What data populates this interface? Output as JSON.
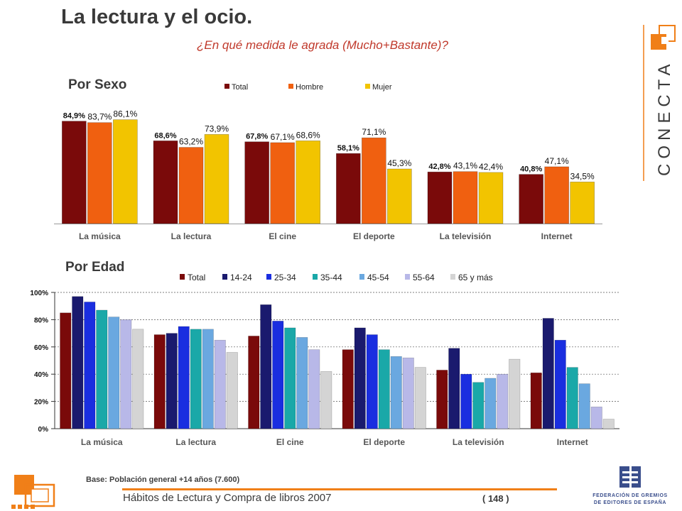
{
  "header": {
    "title": "La lectura y el ocio.",
    "subtitle": "¿En qué medida le agrada (Mucho+Bastante)?"
  },
  "brand": {
    "logo_text": "CONECTA",
    "federation_name_line1": "FEDERACIÓN DE GREMIOS",
    "federation_name_line2": "DE EDITORES DE ESPAÑA"
  },
  "colors": {
    "total": "#7a0a0a",
    "hombre": "#f06010",
    "mujer": "#f2c400",
    "age_14_24": "#1a1a6e",
    "age_25_34": "#1a2ee0",
    "age_35_44": "#1aa8a8",
    "age_45_54": "#6aa8e0",
    "age_55_64": "#b8b8e8",
    "age_65_plus": "#d4d4d4",
    "accent": "#f07f18",
    "subtitle": "#c0392b"
  },
  "sections": {
    "sexo_title": "Por Sexo",
    "edad_title": "Por Edad"
  },
  "chart_data": [
    {
      "type": "bar",
      "title": "Por Sexo",
      "categories": [
        "La música",
        "La lectura",
        "El cine",
        "El deporte",
        "La televisión",
        "Internet"
      ],
      "series": [
        {
          "name": "Total",
          "values": [
            84.9,
            68.6,
            67.8,
            58.1,
            42.8,
            40.8
          ],
          "labels": [
            "84,9%",
            "68,6%",
            "67,8%",
            "58,1%",
            "42,8%",
            "40,8%"
          ]
        },
        {
          "name": "Hombre",
          "values": [
            83.7,
            63.2,
            67.1,
            71.1,
            43.1,
            47.1
          ],
          "labels": [
            "83,7%",
            "63,2%",
            "67,1%",
            "71,1%",
            "43,1%",
            "47,1%"
          ]
        },
        {
          "name": "Mujer",
          "values": [
            86.1,
            73.9,
            68.6,
            45.3,
            42.4,
            34.5
          ],
          "labels": [
            "86,1%",
            "73,9%",
            "68,6%",
            "45,3%",
            "42,4%",
            "34,5%"
          ]
        }
      ],
      "ylim": [
        0,
        100
      ],
      "legend": "top",
      "grid": false
    },
    {
      "type": "bar",
      "title": "Por Edad",
      "categories": [
        "La música",
        "La lectura",
        "El cine",
        "El deporte",
        "La televisión",
        "Internet"
      ],
      "series": [
        {
          "name": "Total",
          "values": [
            85,
            69,
            68,
            58,
            43,
            41
          ]
        },
        {
          "name": "14-24",
          "values": [
            97,
            70,
            91,
            74,
            59,
            81
          ]
        },
        {
          "name": "25-34",
          "values": [
            93,
            75,
            79,
            69,
            40,
            65
          ]
        },
        {
          "name": "35-44",
          "values": [
            87,
            73,
            74,
            58,
            34,
            45
          ]
        },
        {
          "name": "45-54",
          "values": [
            82,
            73,
            67,
            53,
            37,
            33
          ]
        },
        {
          "name": "55-64",
          "values": [
            80,
            65,
            58,
            52,
            40,
            16
          ]
        },
        {
          "name": "65 y más",
          "values": [
            73,
            56,
            42,
            45,
            51,
            7
          ]
        }
      ],
      "yticks": [
        "0%",
        "20%",
        "40%",
        "60%",
        "80%",
        "100%"
      ],
      "ylim": [
        0,
        100
      ],
      "legend": "top",
      "grid": true
    }
  ],
  "footer": {
    "base_note": "Base: Población general +14 años (7.600)",
    "report_title": "Hábitos de Lectura y Compra de libros 2007",
    "page_number": "( 148 )"
  }
}
